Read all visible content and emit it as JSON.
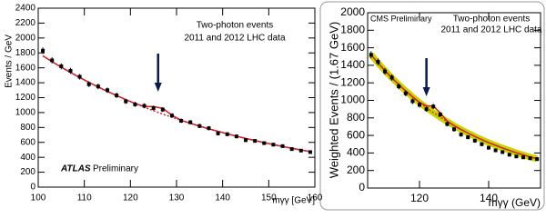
{
  "chart_data": [
    {
      "type": "scatter",
      "title_lines": [
        "Two-photon events",
        "2011 and 2012 LHC data"
      ],
      "experiment": "ATLAS",
      "status": "Preliminary",
      "x_label": "mγγ [GeV]",
      "y_label": "Events / GeV",
      "xlim": [
        100,
        160
      ],
      "xticks": [
        100,
        110,
        120,
        130,
        140,
        150,
        160
      ],
      "ylim": [
        0,
        2400
      ],
      "yticks": [
        0,
        200,
        400,
        600,
        800,
        1000,
        1200,
        1400,
        1600,
        1800,
        2000,
        2200,
        2400
      ],
      "arrow_x": 126,
      "x": [
        101,
        103,
        105,
        107,
        109,
        111,
        113,
        115,
        117,
        119,
        121,
        123,
        125,
        127,
        129,
        131,
        133,
        135,
        137,
        139,
        141,
        143,
        145,
        147,
        149,
        151,
        153,
        155,
        157,
        159
      ],
      "series": [
        {
          "mark": "line",
          "dash": true,
          "color": "#d0202a",
          "width": 1.5,
          "values": [
            1760,
            1683,
            1609,
            1538,
            1470,
            1405,
            1343,
            1284,
            1228,
            1174,
            1122,
            1072,
            1025,
            980,
            937,
            895,
            856,
            818,
            782,
            748,
            715,
            683,
            653,
            624,
            597,
            571,
            545,
            521,
            498,
            476
          ]
        },
        {
          "mark": "line",
          "dash": false,
          "color": "#d0202a",
          "width": 1.5,
          "values": [
            1760,
            1683,
            1609,
            1538,
            1470,
            1405,
            1343,
            1284,
            1228,
            1174,
            1122,
            1082,
            1079,
            1057,
            964,
            896,
            856,
            818,
            782,
            748,
            715,
            683,
            653,
            624,
            597,
            571,
            545,
            521,
            498,
            476
          ]
        },
        {
          "mark": "points",
          "color": "#000000",
          "values": [
            1830,
            1700,
            1620,
            1560,
            1480,
            1380,
            1350,
            1300,
            1230,
            1150,
            1110,
            1090,
            1060,
            1040,
            960,
            890,
            870,
            820,
            790,
            720,
            710,
            680,
            630,
            620,
            590,
            570,
            550,
            510,
            490,
            470
          ],
          "errors": [
            43,
            41,
            40,
            40,
            38,
            37,
            37,
            36,
            35,
            34,
            33,
            33,
            33,
            32,
            31,
            30,
            29,
            29,
            28,
            27,
            27,
            26,
            25,
            25,
            24,
            24,
            23,
            23,
            22,
            22
          ]
        }
      ]
    },
    {
      "type": "scatter",
      "title_lines": [
        "Two-photon events",
        "2011 and 2012 LHC data"
      ],
      "experiment": "CMS Preliminary",
      "x_label": "mγγ (GeV)",
      "y_label": "Weighted Events / (1.67 GeV)",
      "xlim": [
        105,
        155
      ],
      "xticks": [
        120,
        140
      ],
      "ylim": [
        0,
        2000
      ],
      "yticks": [
        0,
        200,
        400,
        600,
        800,
        1000,
        1200,
        1400,
        1600,
        1800,
        2000
      ],
      "arrow_x": 122,
      "x": [
        106,
        108,
        110,
        112,
        114,
        116,
        118,
        120,
        122,
        124,
        126,
        128,
        130,
        132,
        134,
        136,
        138,
        140,
        142,
        144,
        146,
        148,
        150,
        152,
        154
      ],
      "series": [
        {
          "mark": "line",
          "dash": false,
          "color": "#c8d400",
          "width": 7,
          "values": [
            1520,
            1427,
            1340,
            1257,
            1180,
            1108,
            1040,
            976,
            916,
            860,
            807,
            758,
            711,
            668,
            627,
            588,
            552,
            518,
            487,
            457,
            429,
            402,
            378,
            354,
            333
          ]
        },
        {
          "mark": "line",
          "dash": true,
          "color": "#d0202a",
          "width": 1.2,
          "values": [
            1520,
            1427,
            1340,
            1257,
            1180,
            1108,
            1040,
            976,
            916,
            860,
            807,
            758,
            711,
            668,
            627,
            588,
            552,
            518,
            487,
            457,
            429,
            402,
            378,
            354,
            333
          ]
        },
        {
          "mark": "line",
          "dash": false,
          "color": "#d0202a",
          "width": 1.5,
          "values": [
            1520,
            1427,
            1340,
            1257,
            1180,
            1108,
            1040,
            976,
            936,
            936,
            856,
            763,
            711,
            668,
            627,
            588,
            552,
            518,
            487,
            457,
            429,
            402,
            378,
            354,
            333
          ]
        },
        {
          "mark": "points",
          "color": "#000000",
          "values": [
            1520,
            1440,
            1330,
            1260,
            1160,
            1080,
            990,
            950,
            900,
            930,
            840,
            730,
            670,
            610,
            580,
            540,
            500,
            460,
            430,
            410,
            380,
            360,
            350,
            340,
            330
          ],
          "errors": [
            40,
            38,
            37,
            36,
            34,
            33,
            32,
            31,
            30,
            30,
            29,
            27,
            26,
            25,
            24,
            23,
            22,
            21,
            21,
            20,
            19,
            19,
            19,
            18,
            18
          ]
        }
      ]
    }
  ]
}
